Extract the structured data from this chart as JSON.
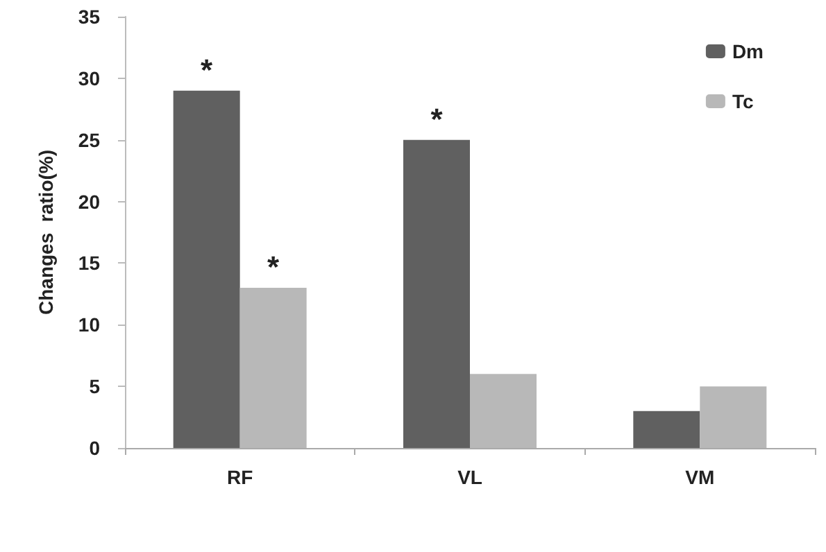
{
  "chart_data": {
    "type": "bar",
    "ylabel": "Changes  ratio(%)",
    "categories": [
      "RF",
      "VL",
      "VM"
    ],
    "series": [
      {
        "name": "Dm",
        "color": "#606060",
        "values": [
          29,
          25,
          3
        ]
      },
      {
        "name": "Tc",
        "color": "#b8b8b8",
        "values": [
          13,
          6,
          5
        ]
      }
    ],
    "ylim": [
      0,
      35
    ],
    "yticks": [
      0,
      5,
      10,
      15,
      20,
      25,
      30,
      35
    ],
    "grid": false,
    "legend": "top right",
    "annotations": [
      {
        "text": "*",
        "x": "RF",
        "y": 29
      },
      {
        "text": "*",
        "x": "RF",
        "y": 13
      },
      {
        "text": "*",
        "x": "VL",
        "y": 25
      }
    ]
  }
}
